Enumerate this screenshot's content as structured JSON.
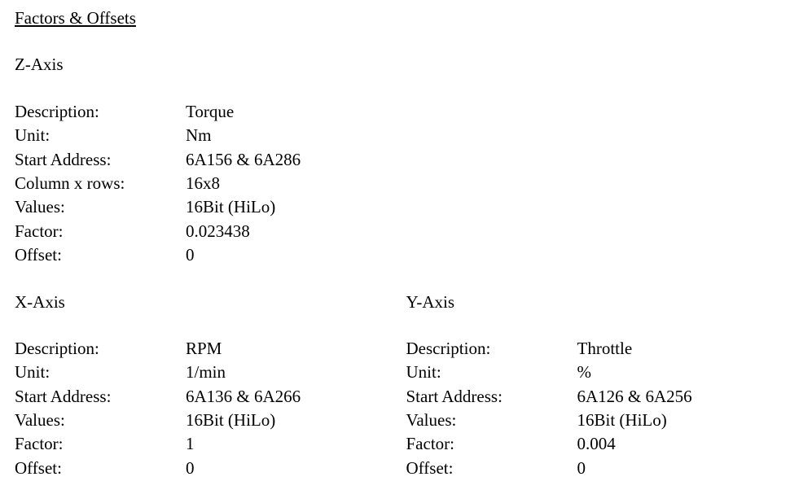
{
  "title": "Factors & Offsets",
  "z": {
    "heading": "Z-Axis",
    "rows": [
      {
        "key": "Description:",
        "val": "Torque"
      },
      {
        "key": "Unit:",
        "val": "Nm"
      },
      {
        "key": "Start Address:",
        "val": "6A156 & 6A286"
      },
      {
        "key": "Column x rows:",
        "val": "16x8"
      },
      {
        "key": "Values:",
        "val": "16Bit (HiLo)"
      },
      {
        "key": "Factor:",
        "val": "0.023438"
      },
      {
        "key": "Offset:",
        "val": "0"
      }
    ]
  },
  "x": {
    "heading": "X-Axis",
    "rows": [
      {
        "key": "Description:",
        "val": "RPM"
      },
      {
        "key": "Unit:",
        "val": "1/min"
      },
      {
        "key": "Start Address:",
        "val": "6A136 & 6A266"
      },
      {
        "key": "Values:",
        "val": "16Bit (HiLo)"
      },
      {
        "key": "Factor:",
        "val": "1"
      },
      {
        "key": "Offset:",
        "val": "0"
      }
    ]
  },
  "y": {
    "heading": "Y-Axis",
    "rows": [
      {
        "key": "Description:",
        "val": "Throttle"
      },
      {
        "key": "Unit:",
        "val": "%"
      },
      {
        "key": "Start Address:",
        "val": "6A126 & 6A256"
      },
      {
        "key": "Values:",
        "val": "16Bit (HiLo)"
      },
      {
        "key": "Factor:",
        "val": "0.004"
      },
      {
        "key": "Offset:",
        "val": "0"
      }
    ]
  }
}
